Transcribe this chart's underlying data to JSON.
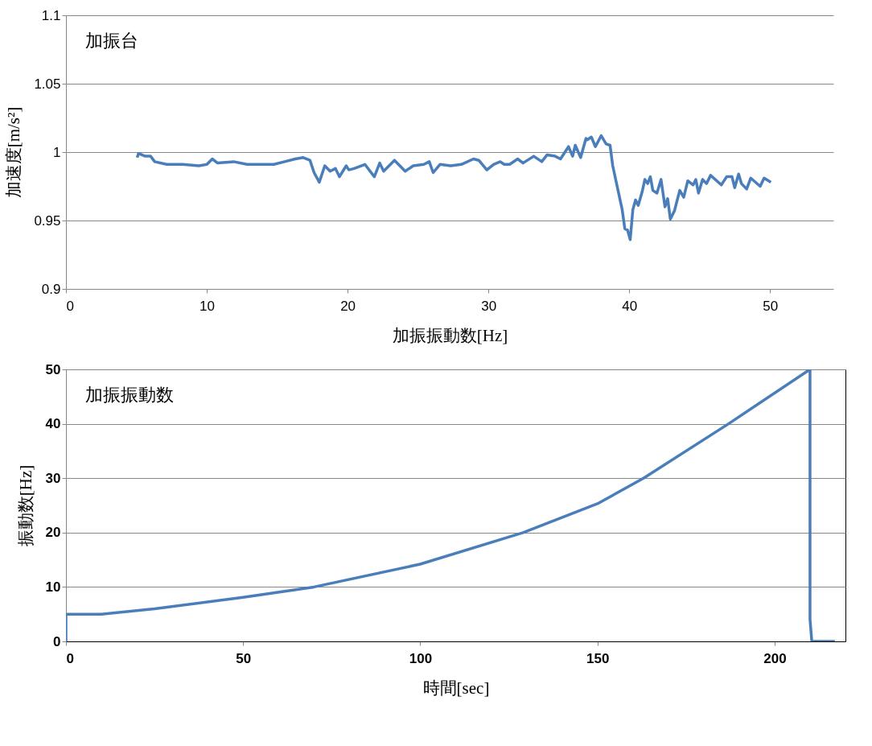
{
  "chart_data": [
    {
      "type": "line",
      "title": "加振台",
      "xlabel": "加振振動数[Hz]",
      "ylabel": "加速度[m/s²]",
      "color": "#4a7ebb",
      "grid": "y",
      "xlim": [
        0,
        54.5
      ],
      "xticks": [
        0,
        10,
        20,
        30,
        40,
        50
      ],
      "ylim": [
        0.9,
        1.1
      ],
      "yticks": [
        0.9,
        0.95,
        1,
        1.05,
        1.1
      ],
      "x": [
        5.06,
        5.15,
        5.63,
        6.01,
        6.3,
        7.15,
        8.29,
        9.44,
        10.01,
        10.39,
        10.77,
        11.91,
        12.86,
        14.0,
        14.77,
        15.53,
        16.28,
        16.85,
        17.33,
        17.62,
        17.99,
        18.38,
        18.76,
        19.14,
        19.42,
        19.9,
        20.09,
        20.47,
        21.23,
        21.9,
        22.28,
        22.56,
        23.33,
        24.09,
        24.66,
        25.42,
        25.8,
        26.08,
        26.56,
        27.32,
        28.08,
        28.94,
        29.32,
        29.89,
        30.37,
        30.84,
        31.12,
        31.51,
        32.08,
        32.46,
        33.22,
        33.79,
        34.17,
        34.74,
        35.12,
        35.69,
        35.98,
        36.17,
        36.55,
        36.93,
        37.02,
        37.31,
        37.6,
        38.01,
        38.36,
        38.64,
        38.83,
        39.5,
        39.69,
        39.88,
        40.07,
        40.26,
        40.45,
        40.64,
        40.92,
        41.11,
        41.31,
        41.5,
        41.68,
        41.97,
        42.26,
        42.54,
        42.73,
        42.92,
        43.21,
        43.59,
        43.87,
        44.16,
        44.54,
        44.73,
        44.92,
        45.21,
        45.49,
        45.78,
        46.54,
        46.92,
        47.3,
        47.49,
        47.77,
        47.97,
        48.34,
        48.63,
        49.3,
        49.58,
        50.06
      ],
      "values": [
        0.996,
        0.999,
        0.997,
        0.997,
        0.993,
        0.991,
        0.991,
        0.99,
        0.991,
        0.995,
        0.992,
        0.993,
        0.991,
        0.991,
        0.991,
        0.993,
        0.995,
        0.996,
        0.994,
        0.985,
        0.978,
        0.99,
        0.986,
        0.988,
        0.982,
        0.99,
        0.987,
        0.988,
        0.991,
        0.982,
        0.992,
        0.986,
        0.994,
        0.986,
        0.99,
        0.991,
        0.993,
        0.985,
        0.991,
        0.99,
        0.991,
        0.995,
        0.994,
        0.987,
        0.991,
        0.993,
        0.991,
        0.991,
        0.995,
        0.992,
        0.997,
        0.993,
        0.998,
        0.997,
        0.995,
        1.004,
        0.997,
        1.005,
        0.996,
        1.01,
        1.009,
        1.011,
        1.004,
        1.012,
        1.006,
        1.005,
        0.99,
        0.958,
        0.944,
        0.943,
        0.936,
        0.958,
        0.965,
        0.961,
        0.971,
        0.98,
        0.977,
        0.982,
        0.972,
        0.97,
        0.98,
        0.96,
        0.966,
        0.951,
        0.957,
        0.972,
        0.967,
        0.979,
        0.976,
        0.98,
        0.97,
        0.98,
        0.977,
        0.983,
        0.976,
        0.982,
        0.982,
        0.974,
        0.984,
        0.977,
        0.973,
        0.981,
        0.975,
        0.981,
        0.978
      ]
    },
    {
      "type": "line",
      "title": "加振振動数",
      "xlabel": "時間[sec]",
      "ylabel": "振動数[Hz]",
      "color": "#4a7ebb",
      "grid": "y",
      "xlim": [
        0,
        220
      ],
      "xticks": [
        0,
        50,
        100,
        150,
        200
      ],
      "ylim": [
        0,
        50
      ],
      "yticks": [
        0,
        10,
        20,
        30,
        40,
        50
      ],
      "x": [
        0,
        0,
        10,
        25,
        50,
        70,
        100,
        129,
        150,
        163,
        187,
        210,
        210,
        210.5,
        217
      ],
      "values": [
        0,
        5,
        5,
        6,
        8.1,
        10,
        14.2,
        20,
        25.3,
        30,
        40,
        50,
        4,
        0,
        0
      ]
    }
  ]
}
